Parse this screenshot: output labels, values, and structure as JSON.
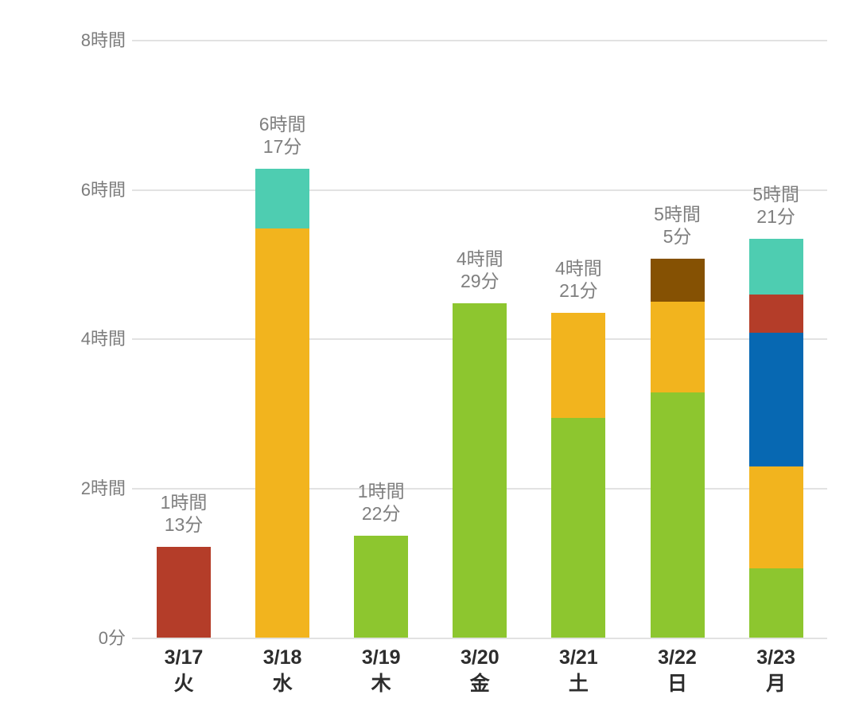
{
  "chart_data": {
    "type": "bar",
    "stacked": true,
    "unit_of_values": "minutes",
    "title": "",
    "xlabel": "",
    "ylabel": "",
    "legend": false,
    "grid": true,
    "ylim": [
      0,
      480
    ],
    "categories": [
      "3/17",
      "3/18",
      "3/19",
      "3/20",
      "3/21",
      "3/22",
      "3/23"
    ],
    "weekdays": [
      "火",
      "水",
      "木",
      "金",
      "土",
      "日",
      "月"
    ],
    "bar_total_labels": [
      [
        "1時間",
        "13分"
      ],
      [
        "6時間",
        "17分"
      ],
      [
        "1時間",
        "22分"
      ],
      [
        "4時間",
        "29分"
      ],
      [
        "4時間",
        "21分"
      ],
      [
        "5時間",
        "5分"
      ],
      [
        "5時間",
        "21分"
      ]
    ],
    "y_axis_ticks": [
      {
        "minutes": 0,
        "label": "0分"
      },
      {
        "minutes": 120,
        "label": "2時間"
      },
      {
        "minutes": 240,
        "label": "4時間"
      },
      {
        "minutes": 360,
        "label": "6時間"
      },
      {
        "minutes": 480,
        "label": "8時間"
      }
    ],
    "series": [
      {
        "name": "green-segment",
        "color": "#8DC62F",
        "values": [
          0,
          0,
          82,
          269,
          177,
          197,
          56
        ]
      },
      {
        "name": "orange-segment",
        "color": "#F2B41E",
        "values": [
          0,
          329,
          0,
          0,
          84,
          73,
          82
        ]
      },
      {
        "name": "blue-segment",
        "color": "#0768B2",
        "values": [
          0,
          0,
          0,
          0,
          0,
          0,
          107
        ]
      },
      {
        "name": "red-segment",
        "color": "#B43D29",
        "values": [
          73,
          0,
          0,
          0,
          0,
          0,
          31
        ]
      },
      {
        "name": "brown-segment",
        "color": "#855103",
        "values": [
          0,
          0,
          0,
          0,
          0,
          35,
          0
        ]
      },
      {
        "name": "teal-segment",
        "color": "#4ECDB1",
        "values": [
          0,
          48,
          0,
          0,
          0,
          0,
          45
        ]
      }
    ],
    "colors": {
      "background": "#ffffff",
      "gridline": "#e2e2e2",
      "axis_tick_label": "#7d7d7d",
      "value_label": "#7f7f7f",
      "category_label": "#2d2d2d"
    }
  }
}
